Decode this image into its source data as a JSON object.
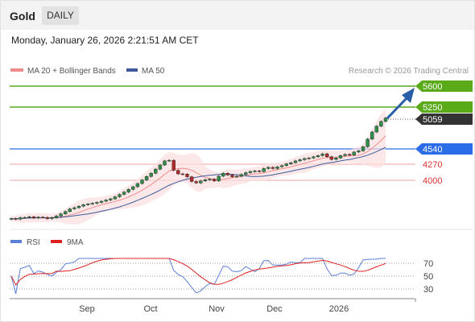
{
  "header": {
    "instrument": "Gold",
    "timeframe_tab": "DAILY"
  },
  "timestamp": "Monday, January 26, 2026 2:21:51 AM CET",
  "legend": {
    "items": [
      {
        "label": "MA 20 + Bollinger Bands",
        "color": "#f08c8c"
      },
      {
        "label": "MA 50",
        "color": "#3b5b9a"
      }
    ],
    "copyright": "Research © 2026 Trading Central"
  },
  "levels": [
    {
      "label": "5600",
      "kind": "target",
      "color": "#5aaa1a"
    },
    {
      "label": "5250",
      "kind": "target",
      "color": "#5aaa1a"
    },
    {
      "label": "5059",
      "kind": "last-price",
      "color": "#333333"
    },
    {
      "label": "4540",
      "kind": "pivot",
      "color": "#2b6de8"
    },
    {
      "label": "4270",
      "kind": "support",
      "color": "#e85a5a"
    },
    {
      "label": "4000",
      "kind": "support",
      "color": "#e85a5a"
    }
  ],
  "rsi_panel": {
    "legend": [
      {
        "label": "RSI",
        "color": "#5b7fd6"
      },
      {
        "label": "9MA",
        "color": "#e02020"
      }
    ],
    "axis_labels": [
      "70",
      "50",
      "30"
    ]
  },
  "x_axis": {
    "labels": [
      "Sep",
      "Oct",
      "Nov",
      "Dec",
      "2026"
    ]
  },
  "chart_data": {
    "type": "line",
    "title": "Gold",
    "subtitle": "DAILY",
    "y_axis_labels": [
      5600,
      5250,
      5059,
      4540,
      4270,
      4000
    ],
    "x_labels": [
      "Sep",
      "Oct",
      "Nov",
      "Dec",
      "2026"
    ],
    "series": [
      {
        "name": "MA 20 + Bollinger Bands"
      },
      {
        "name": "MA 50"
      }
    ],
    "rsi": {
      "name": "RSI",
      "signal": "9MA",
      "levels": [
        70,
        50,
        30
      ]
    },
    "close_approx": [
      3350,
      3340,
      3365,
      3370,
      3380,
      3360,
      3375,
      3370,
      3350,
      3365,
      3395,
      3430,
      3470,
      3515,
      3535,
      3560,
      3585,
      3600,
      3610,
      3625,
      3645,
      3665,
      3685,
      3720,
      3760,
      3800,
      3845,
      3890,
      3945,
      4005,
      4065,
      4120,
      4190,
      4260,
      4330,
      4340,
      4170,
      4110,
      4105,
      4060,
      3980,
      3955,
      3990,
      4010,
      4020,
      3990,
      4070,
      4120,
      4090,
      4060,
      4070,
      4100,
      4130,
      4150,
      4160,
      4150,
      4200,
      4220,
      4200,
      4230,
      4250,
      4280,
      4300,
      4330,
      4350,
      4370,
      4380,
      4400,
      4420,
      4450,
      4400,
      4355,
      4380,
      4420,
      4440,
      4430,
      4480,
      4500,
      4570,
      4700,
      4820,
      4920,
      5000,
      5059
    ],
    "projection": {
      "to": 5600
    }
  }
}
